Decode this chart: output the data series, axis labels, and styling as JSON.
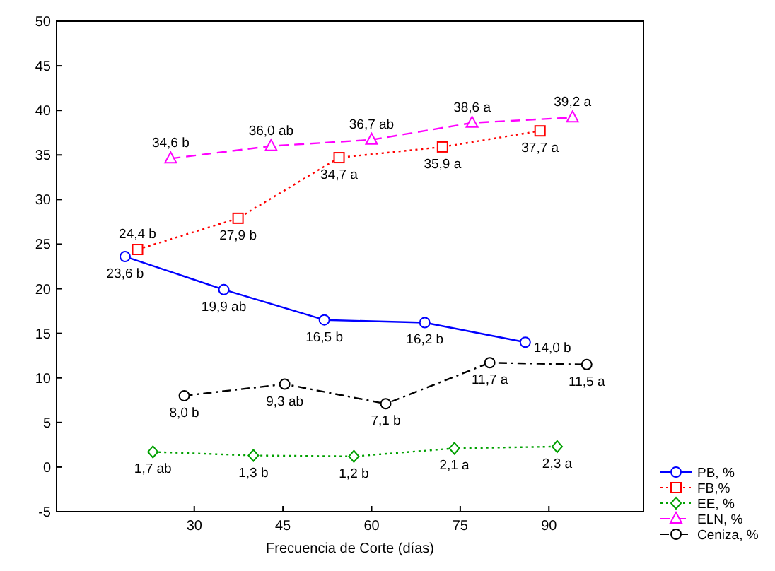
{
  "chart_data": {
    "type": "line",
    "xlabel": "Frecuencia de Corte (días)",
    "xlim": [
      6.7,
      106
    ],
    "xticks": [
      30,
      45,
      60,
      75,
      90
    ],
    "ylim": [
      -5,
      50
    ],
    "yticks": [
      -5,
      0,
      5,
      10,
      15,
      20,
      25,
      30,
      35,
      40,
      45,
      50
    ],
    "grid": false,
    "legend": "bottom right",
    "series": [
      {
        "name": "PB, %",
        "color": "#0000ff",
        "marker": "circle",
        "line_style": "solid",
        "x": [
          18.3,
          35,
          52,
          69,
          86
        ],
        "values": [
          23.6,
          19.9,
          16.5,
          16.2,
          14.0
        ],
        "value_labels": [
          "23,6 b",
          "19,9 ab",
          "16,5 b",
          "16,2 b",
          "14,0 b"
        ]
      },
      {
        "name": "FB,%",
        "color": "#ff0000",
        "marker": "square",
        "line_style": "dotted",
        "x": [
          20.4,
          37.4,
          54.5,
          72,
          88.5
        ],
        "values": [
          24.4,
          27.9,
          34.7,
          35.9,
          37.7
        ],
        "value_labels": [
          "24,4 b",
          "27,9 b",
          "34,7 a",
          "35,9 a",
          "37,7 a"
        ]
      },
      {
        "name": "EE, %",
        "color": "#00a000",
        "marker": "diamond",
        "line_style": "dotted",
        "x": [
          23,
          40,
          57,
          74,
          91.4
        ],
        "values": [
          1.7,
          1.3,
          1.2,
          2.1,
          2.3
        ],
        "value_labels": [
          "1,7 ab",
          "1,3 b",
          "1,2 b",
          "2,1 a",
          "2,3 a"
        ]
      },
      {
        "name": "ELN, %",
        "color": "#ff00ff",
        "marker": "triangle",
        "line_style": "dashed",
        "x": [
          26,
          43,
          60,
          77,
          94
        ],
        "values": [
          34.6,
          36.0,
          36.7,
          38.6,
          39.2
        ],
        "value_labels": [
          "34,6 b",
          "36,0 ab",
          "36,7 ab",
          "38,6 a",
          "39,2 a"
        ]
      },
      {
        "name": "Ceniza, %",
        "color": "#000000",
        "marker": "circle",
        "line_style": "dashdot",
        "x": [
          28.3,
          45.3,
          62.4,
          80,
          96.4
        ],
        "values": [
          8.0,
          9.3,
          7.1,
          11.7,
          11.5
        ],
        "value_labels": [
          "8,0 b",
          "9,3 ab",
          "7,1 b",
          "11,7 a",
          "11,5 a"
        ]
      }
    ]
  }
}
